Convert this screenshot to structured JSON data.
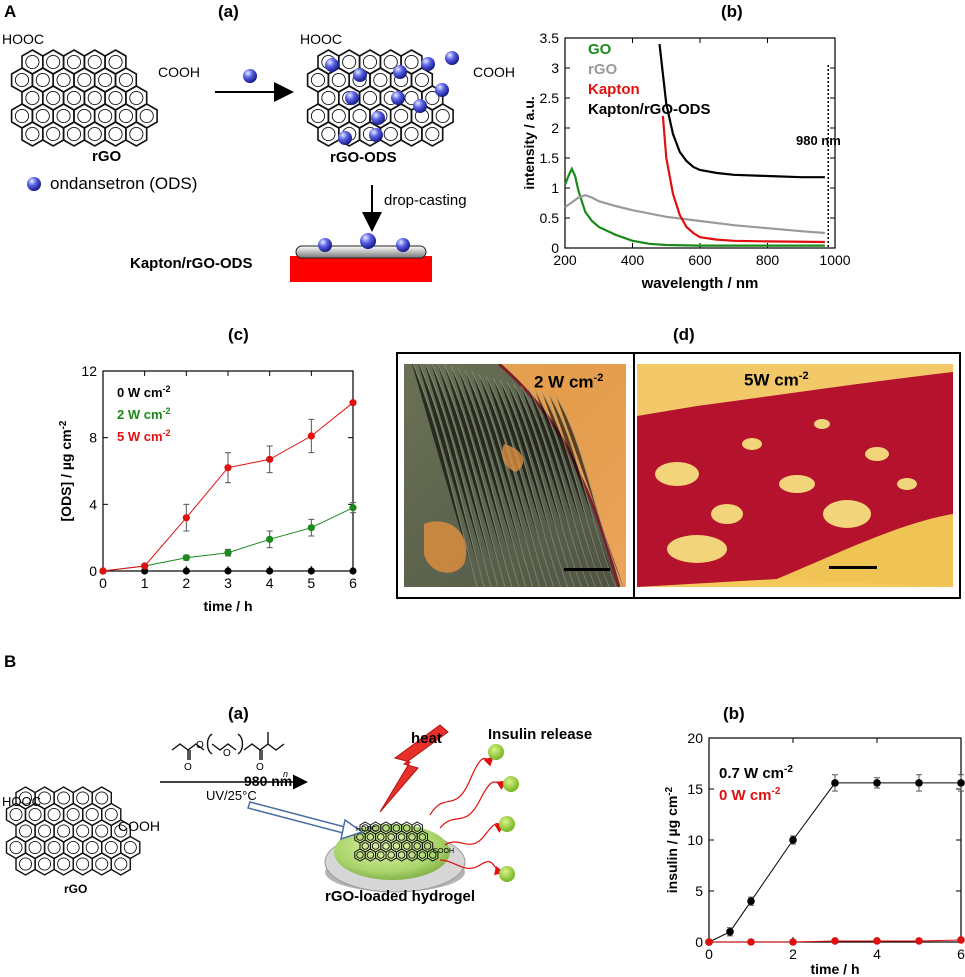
{
  "sectionA": {
    "letter": "A",
    "a": {
      "label": "(a)",
      "cooh_top_left": "HOOC",
      "cooh_right": "COOH",
      "rgo_label": "rGO",
      "ods_legend": "ondansetron (ODS)",
      "rgo_ods_label": "rGO-ODS",
      "drop_casting": "drop-casting",
      "kapton_label": "Kapton/rGO-ODS"
    },
    "b": {
      "label": "(b)",
      "annotation": "980 nm",
      "colors": {
        "GO": "#1a8a1a",
        "rGO": "#9a9a9a",
        "Kapton": "#e01010",
        "Kapton/rGO-ODS": "#000000"
      }
    },
    "c": {
      "label": "(c)"
    },
    "d": {
      "label": "(d)",
      "photo1_label": "2 W cm",
      "photo1_sup": "-2",
      "photo2_label": "5W cm",
      "photo2_sup": "-2"
    }
  },
  "sectionB": {
    "letter": "B",
    "a": {
      "label": "(a)",
      "cooh_top_left": "HOOC",
      "cooh_right": "COOH",
      "rgo_label": "rGO",
      "wavelength": "980 nm",
      "heat": "heat",
      "insulin_release": "Insulin release",
      "uv_label": "UV/25°C",
      "monomer_n": "n",
      "hydrogel_label": "rGO-loaded hydrogel",
      "hooc_small": "HOOC",
      "cooh_small": "COOH"
    },
    "b": {
      "label": "(b)"
    }
  },
  "chart_data": [
    {
      "type": "line",
      "panel": "A(b)",
      "xlabel": "wavelength / nm",
      "ylabel": "intensity / a.u.",
      "xlim": [
        200,
        1000
      ],
      "ylim": [
        0,
        3.5
      ],
      "xticks": [
        "200",
        "400",
        "600",
        "800",
        "1000"
      ],
      "yticks": [
        "0",
        "0.5",
        "1",
        "1.5",
        "2",
        "2.5",
        "3",
        "3.5"
      ],
      "series": [
        {
          "name": "GO",
          "x": [
            200,
            210,
            220,
            230,
            240,
            260,
            280,
            300,
            350,
            400,
            450,
            500,
            600,
            800,
            970
          ],
          "y": [
            1.05,
            1.2,
            1.32,
            1.2,
            0.95,
            0.6,
            0.45,
            0.35,
            0.22,
            0.12,
            0.07,
            0.05,
            0.04,
            0.04,
            0.04
          ]
        },
        {
          "name": "rGO",
          "x": [
            200,
            220,
            240,
            260,
            280,
            300,
            350,
            400,
            500,
            600,
            700,
            800,
            900,
            970
          ],
          "y": [
            0.68,
            0.76,
            0.84,
            0.88,
            0.84,
            0.78,
            0.7,
            0.63,
            0.52,
            0.45,
            0.38,
            0.33,
            0.28,
            0.25
          ]
        },
        {
          "name": "Kapton",
          "x": [
            490,
            500,
            520,
            540,
            560,
            580,
            600,
            650,
            700,
            800,
            970
          ],
          "y": [
            2.2,
            1.5,
            0.9,
            0.55,
            0.35,
            0.25,
            0.18,
            0.14,
            0.12,
            0.11,
            0.1
          ]
        },
        {
          "name": "Kapton/rGO-ODS",
          "x": [
            480,
            500,
            520,
            540,
            560,
            580,
            600,
            650,
            700,
            800,
            900,
            970
          ],
          "y": [
            3.4,
            2.4,
            1.9,
            1.6,
            1.45,
            1.35,
            1.3,
            1.25,
            1.22,
            1.2,
            1.18,
            1.18
          ]
        }
      ]
    },
    {
      "type": "line",
      "panel": "A(c)",
      "xlabel": "time / h",
      "ylabel": "[ODS] / µg cm",
      "ylabel_sup": "-2",
      "xlim": [
        0,
        6
      ],
      "ylim": [
        0,
        12
      ],
      "xticks": [
        "0",
        "1",
        "2",
        "3",
        "4",
        "5",
        "6"
      ],
      "yticks": [
        "0",
        "4",
        "8",
        "12"
      ],
      "x": [
        0,
        1,
        2,
        3,
        4,
        5,
        6
      ],
      "series": [
        {
          "name": "0 W cm",
          "sup": "-2",
          "color": "#000000",
          "values": [
            0,
            0,
            0,
            0,
            0,
            0,
            0
          ],
          "err": [
            0,
            0,
            0,
            0,
            0,
            0,
            0
          ]
        },
        {
          "name": "2 W cm",
          "sup": "-2",
          "color": "#1a8a1a",
          "values": [
            0,
            0.3,
            0.8,
            1.1,
            1.9,
            2.6,
            3.8
          ],
          "err": [
            0,
            0,
            0.15,
            0.2,
            0.5,
            0.5,
            0.3
          ]
        },
        {
          "name": "5 W cm",
          "sup": "-2",
          "color": "#e01010",
          "values": [
            0,
            0.3,
            3.2,
            6.2,
            6.7,
            8.1,
            10.1
          ],
          "err": [
            0,
            0,
            0.8,
            0.9,
            0.8,
            1.0,
            0
          ]
        }
      ]
    },
    {
      "type": "line",
      "panel": "B(b)",
      "xlabel": "time / h",
      "ylabel": "insulin  / µg cm",
      "ylabel_sup": "-2",
      "xlim": [
        0,
        6
      ],
      "ylim": [
        0,
        20
      ],
      "xticks": [
        "0",
        "2",
        "4",
        "6"
      ],
      "yticks": [
        "0",
        "5",
        "10",
        "15",
        "20"
      ],
      "series": [
        {
          "name": "0.7 W cm",
          "sup": "-2",
          "color": "#000000",
          "x": [
            0,
            0.5,
            1,
            2,
            3,
            4,
            5,
            6
          ],
          "values": [
            0,
            1.0,
            4.0,
            10.0,
            15.6,
            15.6,
            15.6,
            15.6
          ],
          "err": [
            0,
            0.4,
            0.4,
            0.4,
            0.8,
            0.5,
            0.8,
            0.8
          ]
        },
        {
          "name": "0 W cm",
          "sup": "-2",
          "color": "#e01010",
          "x": [
            0,
            1,
            2,
            3,
            4,
            5,
            6
          ],
          "values": [
            0,
            0,
            0,
            0.1,
            0.1,
            0.1,
            0.2
          ],
          "err": [
            0,
            0,
            0,
            0,
            0,
            0,
            0
          ]
        }
      ]
    }
  ]
}
